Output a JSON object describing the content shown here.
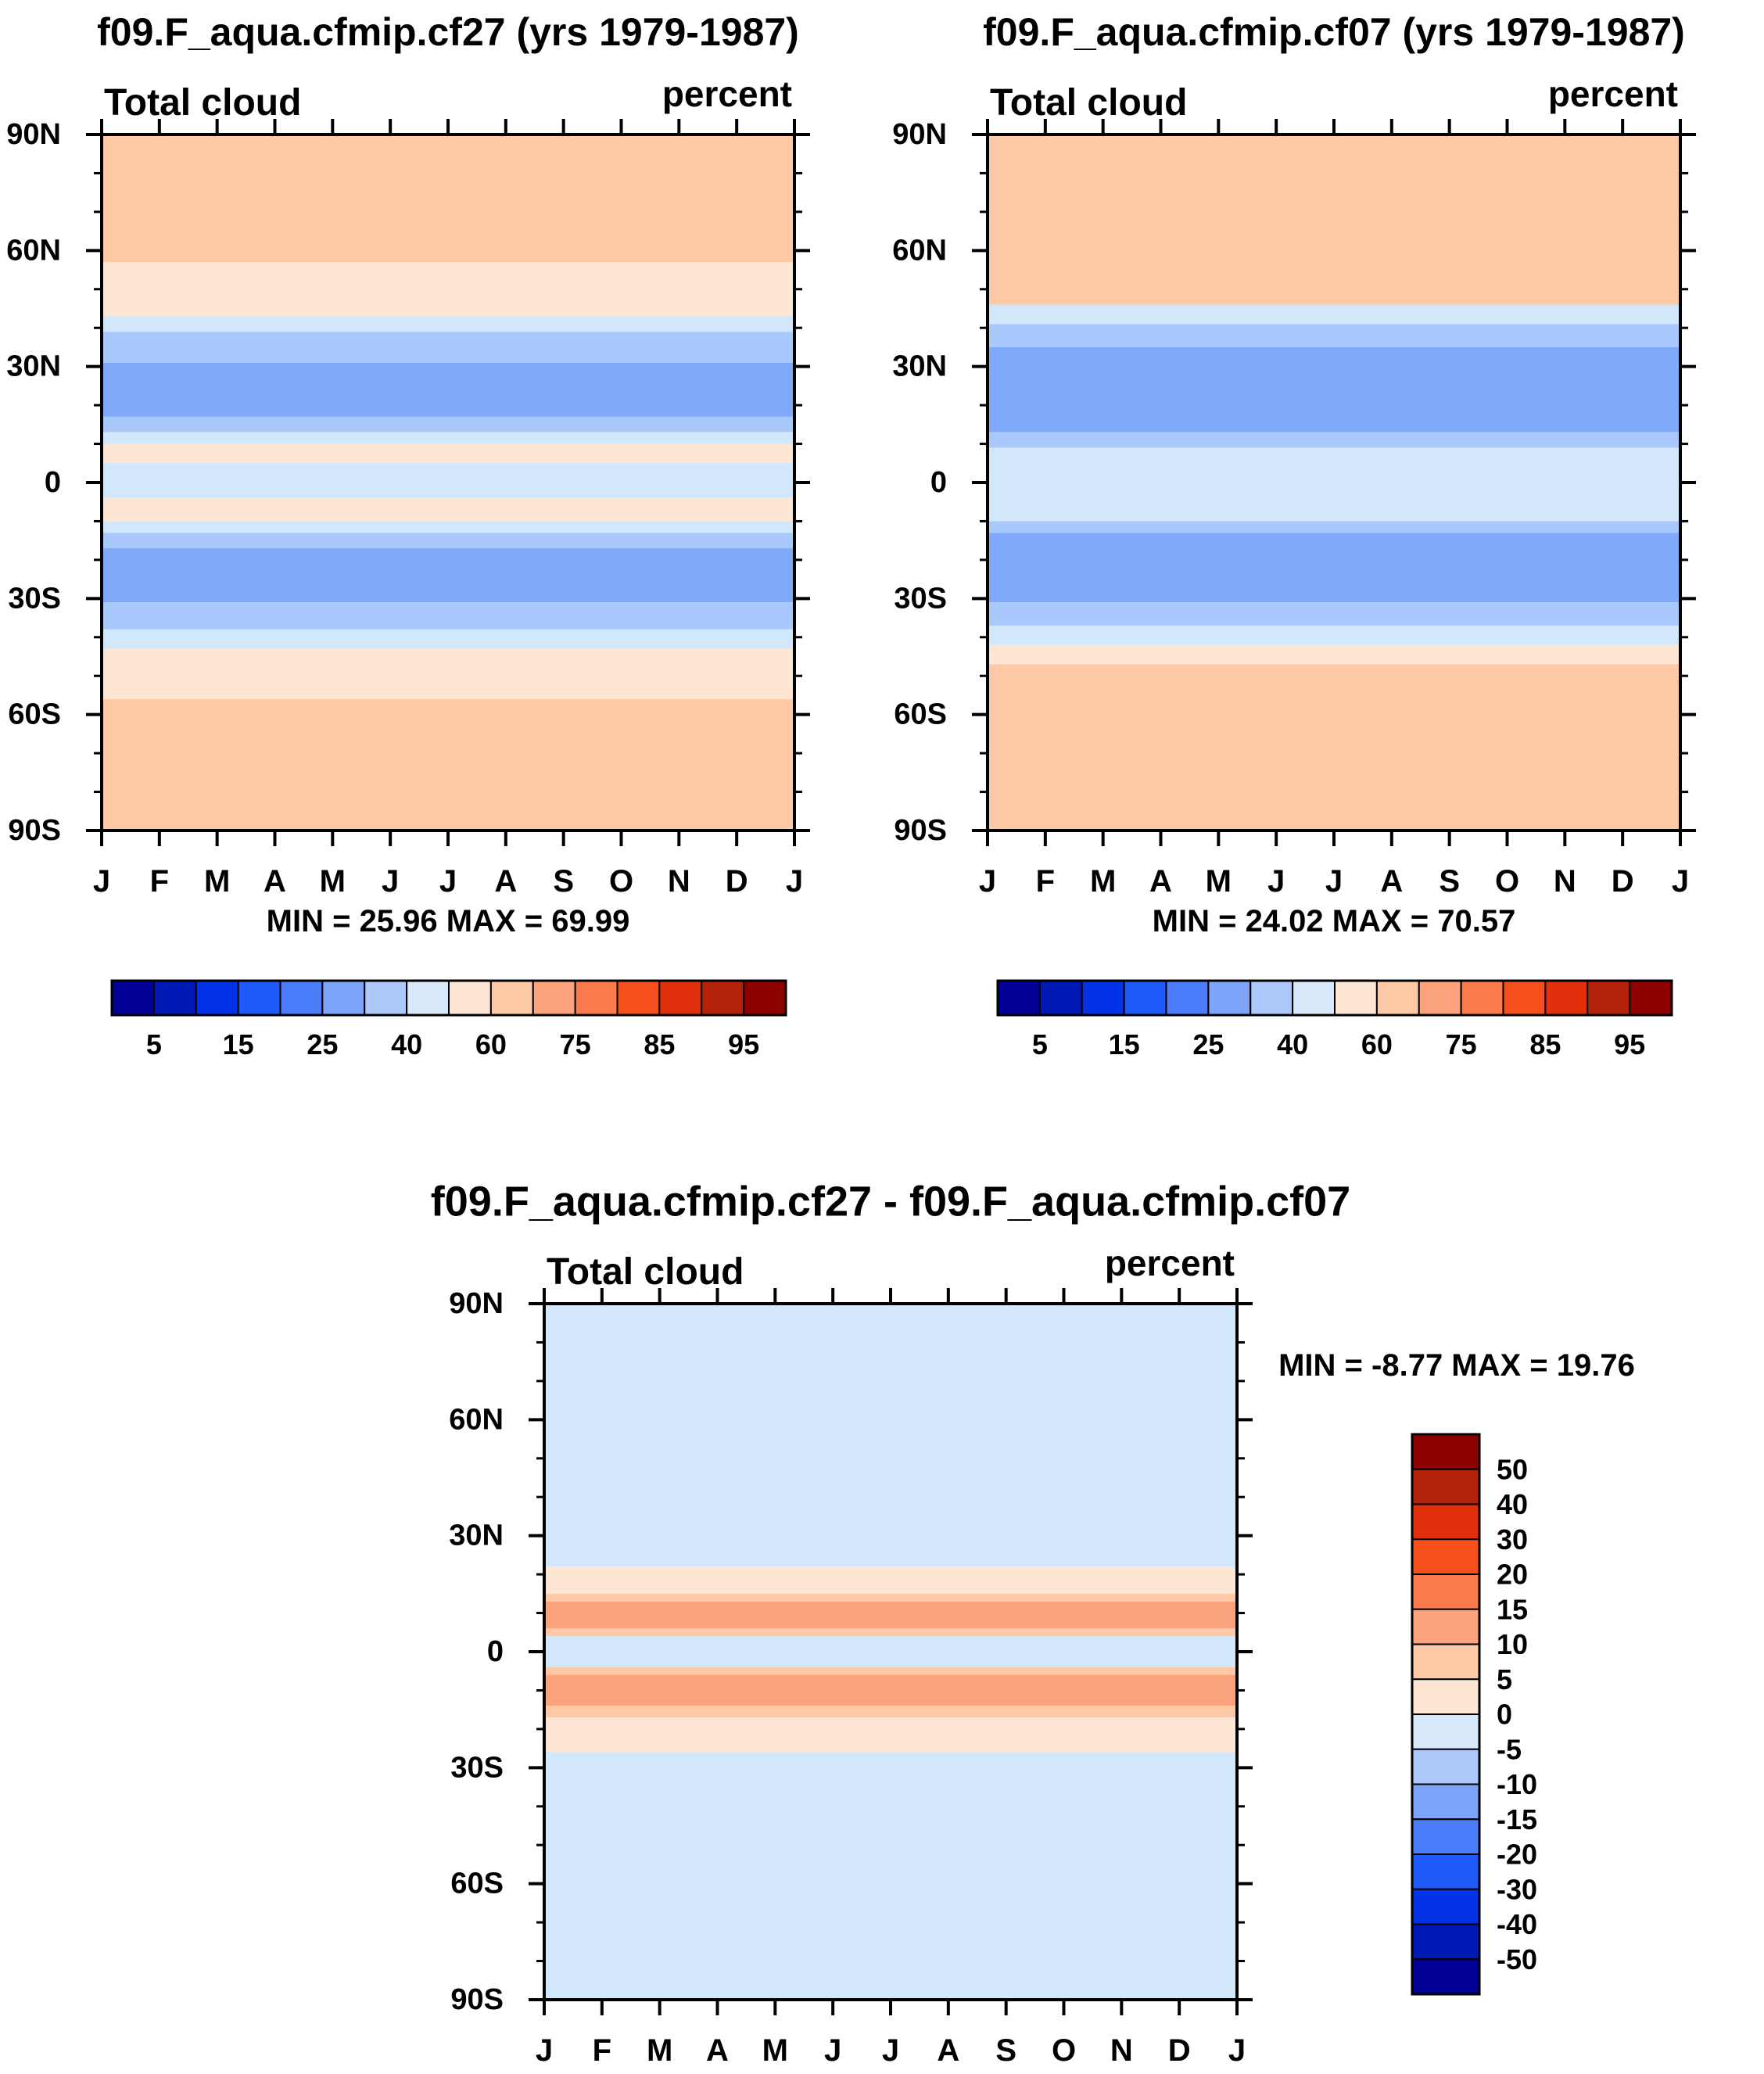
{
  "chart_data": [
    {
      "type": "contour",
      "title": "f09.F_aqua.cfmip.cf27 (yrs 1979-1987)",
      "variable_label": "Total cloud",
      "units_label": "percent",
      "x_ticklabels": [
        "J",
        "F",
        "M",
        "A",
        "M",
        "J",
        "J",
        "A",
        "S",
        "O",
        "N",
        "D",
        "J"
      ],
      "y_ticklabels": [
        "90N",
        "60N",
        "30N",
        "0",
        "30S",
        "60S",
        "90S"
      ],
      "y_values": [
        90,
        60,
        30,
        0,
        -30,
        -60,
        -90
      ],
      "min_max_text": "MIN =  25.96 MAX =  69.99",
      "min": 25.96,
      "max": 69.99,
      "zonal_profile": [
        {
          "lat_from": 90,
          "lat_to": 57,
          "color": "#fec9a7"
        },
        {
          "lat_from": 57,
          "lat_to": 43,
          "color": "#fde6d4"
        },
        {
          "lat_from": 43,
          "lat_to": 39,
          "color": "#d3e7fb"
        },
        {
          "lat_from": 39,
          "lat_to": 31,
          "color": "#a9c8fc"
        },
        {
          "lat_from": 31,
          "lat_to": 17,
          "color": "#7faafc"
        },
        {
          "lat_from": 17,
          "lat_to": 13,
          "color": "#a9c8fc"
        },
        {
          "lat_from": 13,
          "lat_to": 10,
          "color": "#d3e7fb"
        },
        {
          "lat_from": 10,
          "lat_to": 5,
          "color": "#fde6d4"
        },
        {
          "lat_from": 5,
          "lat_to": -4,
          "color": "#d3e7fb"
        },
        {
          "lat_from": -4,
          "lat_to": -10,
          "color": "#fde6d4"
        },
        {
          "lat_from": -10,
          "lat_to": -13,
          "color": "#d3e7fb"
        },
        {
          "lat_from": -13,
          "lat_to": -17,
          "color": "#a9c8fc"
        },
        {
          "lat_from": -17,
          "lat_to": -31,
          "color": "#7faafc"
        },
        {
          "lat_from": -31,
          "lat_to": -38,
          "color": "#a9c8fc"
        },
        {
          "lat_from": -38,
          "lat_to": -43,
          "color": "#d3e7fb"
        },
        {
          "lat_from": -43,
          "lat_to": -56,
          "color": "#fde6d4"
        },
        {
          "lat_from": -56,
          "lat_to": -90,
          "color": "#fec9a7"
        }
      ],
      "colorbar_colors": [
        "#000096",
        "#0119b4",
        "#0232e6",
        "#1e5afa",
        "#4b7cfa",
        "#7fa5fa",
        "#adc8fb",
        "#d7e9fb",
        "#fde6d4",
        "#fec9a7",
        "#fca27c",
        "#fb7a4c",
        "#f64f1e",
        "#e2300c",
        "#b4220a",
        "#8c0000"
      ],
      "colorbar_labels": [
        "5",
        "15",
        "25",
        "40",
        "60",
        "75",
        "85",
        "95"
      ]
    },
    {
      "type": "contour",
      "title": "f09.F_aqua.cfmip.cf07 (yrs 1979-1987)",
      "variable_label": "Total cloud",
      "units_label": "percent",
      "x_ticklabels": [
        "J",
        "F",
        "M",
        "A",
        "M",
        "J",
        "J",
        "A",
        "S",
        "O",
        "N",
        "D",
        "J"
      ],
      "y_ticklabels": [
        "90N",
        "60N",
        "30N",
        "0",
        "30S",
        "60S",
        "90S"
      ],
      "y_values": [
        90,
        60,
        30,
        0,
        -30,
        -60,
        -90
      ],
      "min_max_text": "MIN =  24.02 MAX =  70.57",
      "min": 24.02,
      "max": 70.57,
      "zonal_profile": [
        {
          "lat_from": 90,
          "lat_to": 46,
          "color": "#fec9a7"
        },
        {
          "lat_from": 46,
          "lat_to": 41,
          "color": "#d3e7fb"
        },
        {
          "lat_from": 41,
          "lat_to": 35,
          "color": "#a9c8fc"
        },
        {
          "lat_from": 35,
          "lat_to": 13,
          "color": "#7faafc"
        },
        {
          "lat_from": 13,
          "lat_to": 9,
          "color": "#a9c8fc"
        },
        {
          "lat_from": 9,
          "lat_to": -10,
          "color": "#d3e7fb"
        },
        {
          "lat_from": -10,
          "lat_to": -13,
          "color": "#a9c8fc"
        },
        {
          "lat_from": -13,
          "lat_to": -31,
          "color": "#7faafc"
        },
        {
          "lat_from": -31,
          "lat_to": -37,
          "color": "#a9c8fc"
        },
        {
          "lat_from": -37,
          "lat_to": -42,
          "color": "#d3e7fb"
        },
        {
          "lat_from": -42,
          "lat_to": -47,
          "color": "#fde6d4"
        },
        {
          "lat_from": -47,
          "lat_to": -90,
          "color": "#fec9a7"
        }
      ],
      "colorbar_colors": [
        "#000096",
        "#0119b4",
        "#0232e6",
        "#1e5afa",
        "#4b7cfa",
        "#7fa5fa",
        "#adc8fb",
        "#d7e9fb",
        "#fde6d4",
        "#fec9a7",
        "#fca27c",
        "#fb7a4c",
        "#f64f1e",
        "#e2300c",
        "#b4220a",
        "#8c0000"
      ],
      "colorbar_labels": [
        "5",
        "15",
        "25",
        "40",
        "60",
        "75",
        "85",
        "95"
      ]
    },
    {
      "type": "contour",
      "title": "f09.F_aqua.cfmip.cf27 - f09.F_aqua.cfmip.cf07",
      "variable_label": "Total cloud",
      "units_label": "percent",
      "x_ticklabels": [
        "J",
        "F",
        "M",
        "A",
        "M",
        "J",
        "J",
        "A",
        "S",
        "O",
        "N",
        "D",
        "J"
      ],
      "y_ticklabels": [
        "90N",
        "60N",
        "30N",
        "0",
        "30S",
        "60S",
        "90S"
      ],
      "y_values": [
        90,
        60,
        30,
        0,
        -30,
        -60,
        -90
      ],
      "min_max_text": "MIN =  -8.77 MAX =  19.76",
      "min": -8.77,
      "max": 19.76,
      "zonal_profile": [
        {
          "lat_from": 90,
          "lat_to": 22,
          "color": "#d3e7fb"
        },
        {
          "lat_from": 22,
          "lat_to": 15,
          "color": "#fde6d4"
        },
        {
          "lat_from": 15,
          "lat_to": 13,
          "color": "#fec9a7"
        },
        {
          "lat_from": 13,
          "lat_to": 6,
          "color": "#fca27c"
        },
        {
          "lat_from": 6,
          "lat_to": 4,
          "color": "#fec9a7"
        },
        {
          "lat_from": 4,
          "lat_to": -4,
          "color": "#d3e7fb"
        },
        {
          "lat_from": -4,
          "lat_to": -6,
          "color": "#fec9a7"
        },
        {
          "lat_from": -6,
          "lat_to": -14,
          "color": "#fca27c"
        },
        {
          "lat_from": -14,
          "lat_to": -17,
          "color": "#fec9a7"
        },
        {
          "lat_from": -17,
          "lat_to": -26,
          "color": "#fde6d4"
        },
        {
          "lat_from": -26,
          "lat_to": -90,
          "color": "#d3e7fb"
        }
      ],
      "colorbar_colors": [
        "#000096",
        "#0119b4",
        "#0232e6",
        "#1e5afa",
        "#4b7cfa",
        "#7fa5fa",
        "#adc8fb",
        "#d7e9fb",
        "#fde6d4",
        "#fec9a7",
        "#fca27c",
        "#fb7a4c",
        "#f64f1e",
        "#e2300c",
        "#b4220a",
        "#8c0000"
      ],
      "colorbar_labels": [
        "50",
        "40",
        "30",
        "20",
        "15",
        "10",
        "5",
        "0",
        "-5",
        "-10",
        "-15",
        "-20",
        "-30",
        "-40",
        "-50"
      ]
    }
  ]
}
